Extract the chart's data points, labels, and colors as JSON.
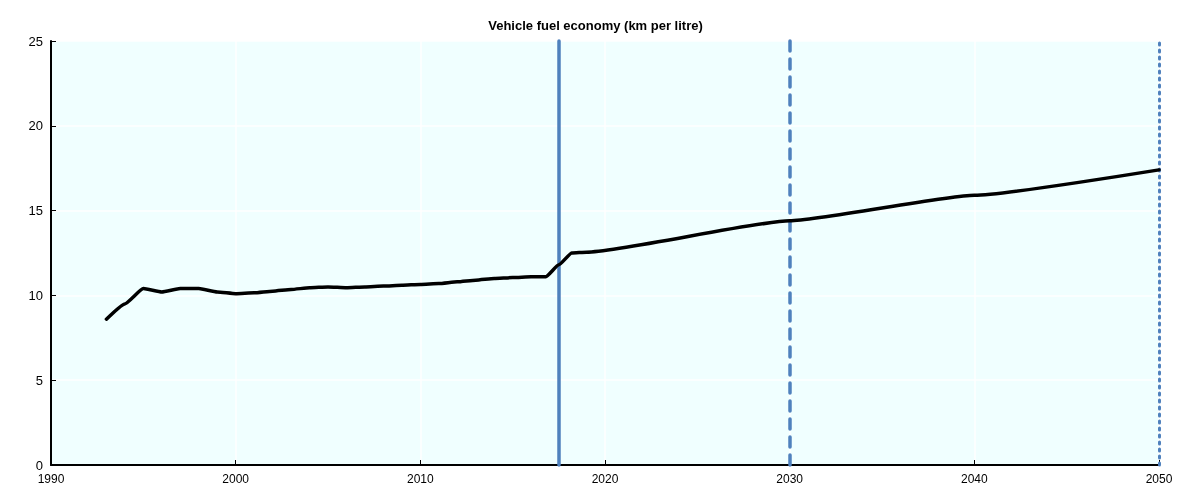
{
  "chart_data": {
    "type": "line",
    "title": "Vehicle fuel economy (km per litre)",
    "series": [
      {
        "color": "#000000",
        "x": [
          1993,
          1994,
          1995,
          1996,
          1997,
          1998,
          1999,
          2000,
          2001,
          2002,
          2003,
          2004,
          2005,
          2006,
          2007,
          2008,
          2009,
          2010,
          2011,
          2012,
          2013,
          2014,
          2015,
          2016,
          2016.8,
          2017.5,
          2018.2,
          2019,
          2030,
          2040,
          2050
        ],
        "values": [
          8.6,
          9.5,
          10.4,
          10.2,
          10.4,
          10.4,
          10.2,
          10.1,
          10.15,
          10.25,
          10.35,
          10.45,
          10.5,
          10.45,
          10.5,
          10.55,
          10.6,
          10.65,
          10.7,
          10.8,
          10.9,
          11.0,
          11.05,
          11.1,
          11.1,
          11.8,
          12.5,
          12.55,
          14.4,
          15.9,
          17.4
        ]
      }
    ],
    "xlim": [
      1990,
      2050
    ],
    "xticks": [
      1990,
      2000,
      2010,
      2020,
      2030,
      2040,
      2050
    ],
    "ylim": [
      0,
      25
    ],
    "yticks": [
      0,
      5,
      10,
      15,
      20,
      25
    ],
    "grid": true,
    "marker": "none",
    "line_style": "solid",
    "ref_lines": [
      {
        "axis": "x",
        "value": 2017.5,
        "color": "#4f81bd",
        "line_style": "solid"
      },
      {
        "axis": "x",
        "value": 2030,
        "color": "#4f81bd",
        "line_style": "dashed"
      },
      {
        "axis": "x",
        "value": 2050,
        "color": "#4f81bd",
        "line_style": "dotted"
      }
    ]
  }
}
